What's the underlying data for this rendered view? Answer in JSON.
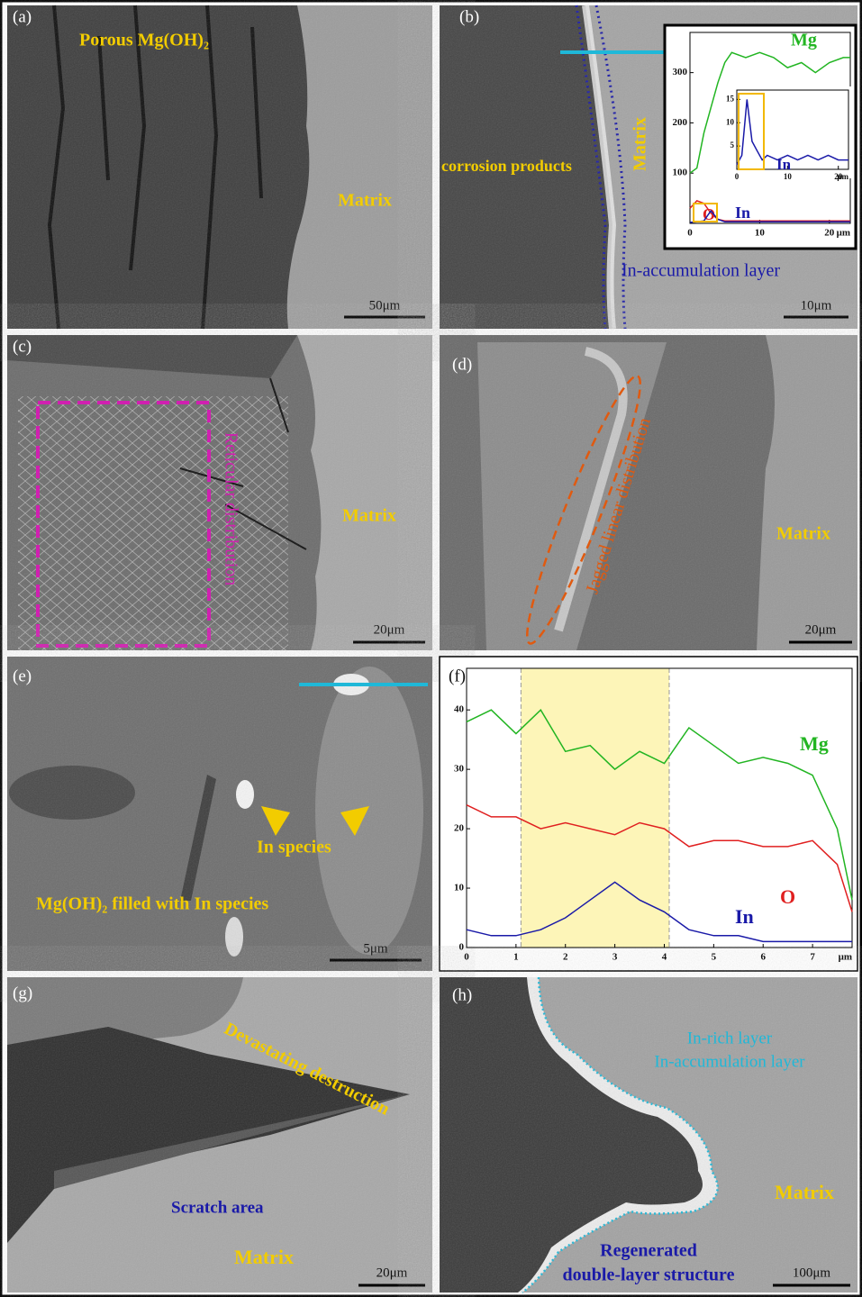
{
  "panels": [
    {
      "label": "(a)",
      "annotations": [
        "Porous Mg(OH)₂",
        "Matrix"
      ],
      "scale_bar": "50μm"
    },
    {
      "label": "(b)",
      "annotations": [
        "corrosion products",
        "Matrix",
        "In-accumulation layer"
      ],
      "scale_bar": "10μm",
      "chart": {
        "type": "line",
        "xlim": [
          0,
          23
        ],
        "ylim": [
          0,
          380
        ],
        "xticks": [
          0,
          10,
          20
        ],
        "yticks": [
          100,
          200,
          300
        ],
        "x_unit": "μm",
        "x": [
          0,
          1,
          2,
          3,
          4,
          5,
          6,
          8,
          10,
          12,
          14,
          16,
          18,
          20,
          22,
          23
        ],
        "series": [
          {
            "name": "Mg",
            "color": "#22b522",
            "values": [
              100,
              110,
              180,
              230,
              280,
              320,
              340,
              330,
              340,
              330,
              310,
              320,
              300,
              320,
              330,
              330
            ]
          },
          {
            "name": "O",
            "color": "#e02020",
            "values": [
              30,
              45,
              40,
              20,
              8,
              5,
              5,
              5,
              5,
              5,
              5,
              5,
              5,
              5,
              5,
              5
            ]
          },
          {
            "name": "In",
            "color": "#1a1aa8",
            "values": [
              2,
              3,
              5,
              25,
              8,
              3,
              3,
              3,
              3,
              3,
              3,
              3,
              3,
              3,
              3,
              3
            ]
          }
        ],
        "inset": {
          "type": "line",
          "xlim": [
            0,
            22
          ],
          "ylim": [
            0,
            17
          ],
          "xticks": [
            0,
            10,
            20
          ],
          "yticks": [
            5,
            10,
            15
          ],
          "x_unit": "μm",
          "x": [
            0,
            1,
            2,
            3,
            4,
            5,
            6,
            8,
            10,
            12,
            14,
            16,
            18,
            20,
            22
          ],
          "series": [
            {
              "name": "In",
              "color": "#1a1aa8",
              "values": [
                1,
                3,
                15,
                6,
                4,
                2,
                3,
                2,
                3,
                2,
                3,
                2,
                3,
                2,
                2
              ]
            }
          ]
        }
      }
    },
    {
      "label": "(c)",
      "annotations": [
        "Reticular distribution",
        "Matrix"
      ],
      "scale_bar": "20μm"
    },
    {
      "label": "(d)",
      "annotations": [
        "Jagged linear distribution",
        "Matrix"
      ],
      "scale_bar": "20μm"
    },
    {
      "label": "(e)",
      "annotations": [
        "In species",
        "Mg(OH)₂ filled with In species"
      ],
      "scale_bar": "5μm"
    },
    {
      "label": "(f)",
      "chart": {
        "type": "line",
        "xlim": [
          0,
          7.8
        ],
        "ylim": [
          0,
          47
        ],
        "xticks": [
          0,
          1,
          2,
          3,
          4,
          5,
          6,
          7
        ],
        "yticks": [
          0,
          10,
          20,
          30,
          40
        ],
        "x_unit": "μm",
        "highlight": [
          1.1,
          4.1
        ],
        "x": [
          0,
          0.5,
          1,
          1.5,
          2,
          2.5,
          3,
          3.5,
          4,
          4.5,
          5,
          5.5,
          6,
          6.5,
          7,
          7.5,
          7.8
        ],
        "series": [
          {
            "name": "Mg",
            "color": "#22b522",
            "values": [
              38,
              40,
              36,
              40,
              33,
              34,
              30,
              33,
              31,
              37,
              34,
              31,
              32,
              31,
              29,
              20,
              8
            ]
          },
          {
            "name": "O",
            "color": "#e02020",
            "values": [
              24,
              22,
              22,
              20,
              21,
              20,
              19,
              21,
              20,
              17,
              18,
              18,
              17,
              17,
              18,
              14,
              6
            ]
          },
          {
            "name": "In",
            "color": "#1a1aa8",
            "values": [
              3,
              2,
              2,
              3,
              5,
              8,
              11,
              8,
              6,
              3,
              2,
              2,
              1,
              1,
              1,
              1,
              1
            ]
          }
        ]
      }
    },
    {
      "label": "(g)",
      "annotations": [
        "Devastating destruction",
        "Scratch area",
        "Matrix"
      ],
      "scale_bar": "20μm"
    },
    {
      "label": "(h)",
      "annotations": [
        "In-rich layer",
        "In-accumulation layer",
        "Matrix",
        "Regenerated",
        "double-layer structure"
      ],
      "scale_bar": "100μm"
    }
  ]
}
